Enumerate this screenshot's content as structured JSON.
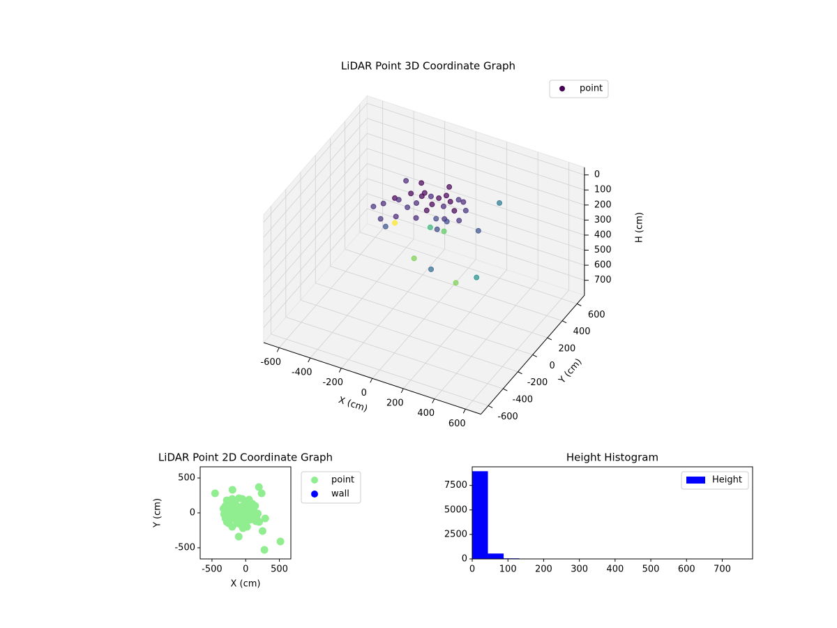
{
  "chart_data": [
    {
      "type": "scatter3d",
      "title": "LiDAR Point 3D Coordinate Graph",
      "xlabel": "X (cm)",
      "ylabel": "Y (cm)",
      "zlabel": "H (cm)",
      "xlim": [
        -700,
        700
      ],
      "ylim": [
        -700,
        700
      ],
      "zlim": [
        800,
        -50
      ],
      "xticks": [
        -600,
        -400,
        -200,
        0,
        200,
        400,
        600
      ],
      "yticks": [
        -600,
        -400,
        -200,
        0,
        200,
        400,
        600
      ],
      "zticks": [
        0,
        100,
        200,
        300,
        400,
        500,
        600,
        700
      ],
      "grid": true,
      "legend": "upper right",
      "series": [
        {
          "name": "point",
          "color": "#440154",
          "x": [
            -300,
            -350,
            -260,
            -220,
            -180,
            -150,
            -120,
            -100,
            -60,
            -20,
            0,
            20,
            40,
            60,
            80,
            100,
            120,
            150,
            -40,
            -80,
            30,
            60,
            -200,
            -280,
            -160,
            -240,
            10,
            90,
            -130,
            140,
            200,
            -50,
            100,
            200,
            -150,
            150,
            -300,
            -250,
            -30,
            0,
            -60
          ],
          "y": [
            80,
            50,
            150,
            120,
            200,
            90,
            260,
            180,
            220,
            150,
            200,
            260,
            180,
            230,
            300,
            200,
            280,
            250,
            120,
            60,
            100,
            150,
            40,
            0,
            300,
            260,
            320,
            120,
            170,
            180,
            600,
            200,
            220,
            290,
            180,
            420,
            110,
            130,
            240,
            270,
            210
          ],
          "z": [
            180,
            200,
            170,
            150,
            140,
            160,
            150,
            120,
            130,
            130,
            110,
            120,
            140,
            130,
            150,
            160,
            140,
            170,
            160,
            190,
            180,
            200,
            210,
            230,
            120,
            110,
            100,
            190,
            170,
            200,
            300,
            600,
            650,
            620,
            550,
            400,
            350,
            320,
            350,
            370,
            330
          ],
          "colors": [
            "#482878",
            "#46327e",
            "#440154",
            "#482878",
            "#440154",
            "#46327e",
            "#440154",
            "#440154",
            "#482878",
            "#440154",
            "#440154",
            "#440154",
            "#482878",
            "#440154",
            "#46327e",
            "#440154",
            "#482878",
            "#46327e",
            "#440154",
            "#482878",
            "#3e4989",
            "#46327e",
            "#482878",
            "#46327e",
            "#440154",
            "#482878",
            "#440154",
            "#3e4989",
            "#482878",
            "#46327e",
            "#2a788e",
            "#31688e",
            "#7ad151",
            "#21918c",
            "#7ad151",
            "#3b528b",
            "#3b528b",
            "#fde725",
            "#3e4989",
            "#5ec962",
            "#35b779"
          ]
        }
      ]
    },
    {
      "type": "scatter",
      "title": "LiDAR Point 2D Coordinate Graph",
      "xlabel": "X (cm)",
      "ylabel": "Y (cm)",
      "xlim": [
        -675,
        670
      ],
      "ylim": [
        -660,
        660
      ],
      "xticks": [
        -500,
        0,
        500
      ],
      "yticks": [
        -500,
        0,
        500
      ],
      "legend": "outside right",
      "series": [
        {
          "name": "point",
          "color": "#90ee90",
          "x": [
            -454,
            -196,
            196,
            237,
            515,
            278,
            -103,
            290,
            250,
            -280,
            -250,
            -300,
            -200,
            -100,
            -50,
            50,
            0,
            -150,
            -220,
            -320,
            -300,
            -250,
            -200,
            -120,
            -60,
            0,
            60,
            100,
            150,
            200,
            180,
            120,
            80,
            30,
            -30,
            -90,
            -160,
            -220,
            -270,
            -180,
            -120,
            -60,
            0,
            50,
            -10,
            -80,
            -140,
            100,
            140,
            -40,
            20,
            -240,
            -330,
            -280,
            60,
            -20,
            -110,
            160
          ],
          "y": [
            280,
            330,
            370,
            280,
            -410,
            -530,
            -340,
            -80,
            -260,
            180,
            150,
            100,
            200,
            210,
            200,
            190,
            150,
            120,
            80,
            -20,
            -80,
            -150,
            -200,
            -150,
            -180,
            -120,
            -100,
            -60,
            -120,
            -130,
            -10,
            30,
            80,
            60,
            20,
            -20,
            -60,
            -30,
            40,
            30,
            60,
            90,
            20,
            -30,
            -60,
            -100,
            -110,
            130,
            100,
            -220,
            -200,
            -100,
            60,
            -130,
            40,
            100,
            0,
            -70
          ]
        },
        {
          "name": "wall",
          "color": "#0000ff",
          "x": [],
          "y": []
        }
      ]
    },
    {
      "type": "histogram",
      "title": "Height Histogram",
      "xlim": [
        0,
        785
      ],
      "ylim": [
        0,
        9400
      ],
      "xticks": [
        0,
        100,
        200,
        300,
        400,
        500,
        600,
        700
      ],
      "yticks": [
        0,
        2500,
        5000,
        7500
      ],
      "legend": "upper right",
      "bins": [
        0,
        44,
        88,
        132,
        176,
        220,
        264,
        308,
        352,
        396,
        440,
        484,
        528,
        572,
        616,
        660,
        704,
        748
      ],
      "series": [
        {
          "name": "Height",
          "color": "#0000ff",
          "values": [
            8950,
            550,
            60,
            5,
            3,
            2,
            1,
            1,
            0,
            1,
            0,
            1,
            0,
            1,
            1,
            0,
            1
          ]
        }
      ]
    }
  ]
}
